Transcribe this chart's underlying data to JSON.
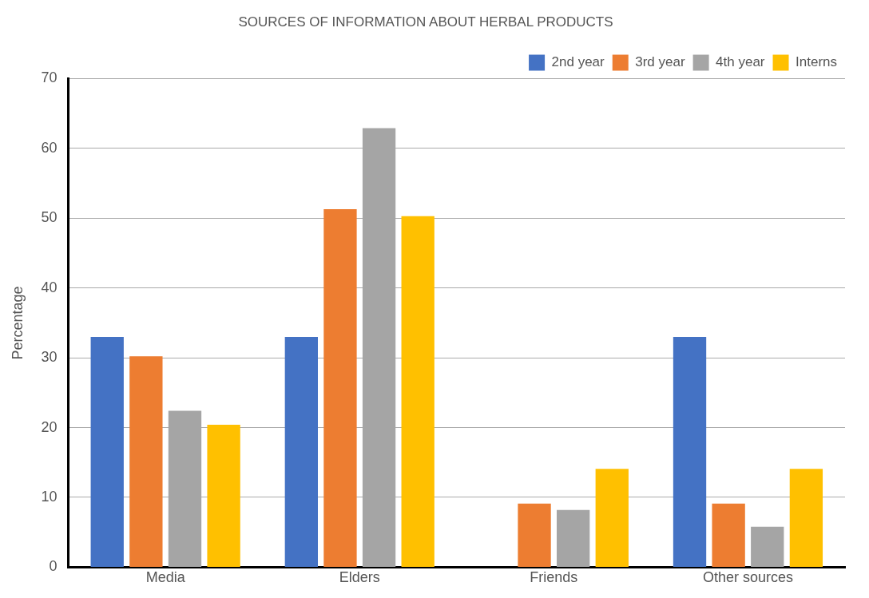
{
  "chart_data": {
    "type": "bar",
    "title": "SOURCES OF INFORMATION ABOUT HERBAL PRODUCTS",
    "ylabel": "Percentage",
    "categories": [
      "Media",
      "Elders",
      "Friends",
      "Other sources"
    ],
    "series": [
      {
        "name": "2nd year",
        "color": "#4472c4",
        "values": [
          33,
          33,
          0,
          33
        ]
      },
      {
        "name": "3rd year",
        "color": "#ed7d31",
        "values": [
          30.2,
          51.3,
          9.1,
          9.1
        ]
      },
      {
        "name": "4th year",
        "color": "#a5a5a5",
        "values": [
          22.4,
          62.9,
          8.2,
          5.8
        ]
      },
      {
        "name": "Interns",
        "color": "#ffc000",
        "values": [
          20.4,
          50.3,
          14.1,
          14.1
        ]
      }
    ],
    "ylim": [
      0,
      70
    ],
    "yticks": [
      0,
      10,
      20,
      30,
      40,
      50,
      60,
      70
    ],
    "grid": "y",
    "legend": "top right"
  }
}
